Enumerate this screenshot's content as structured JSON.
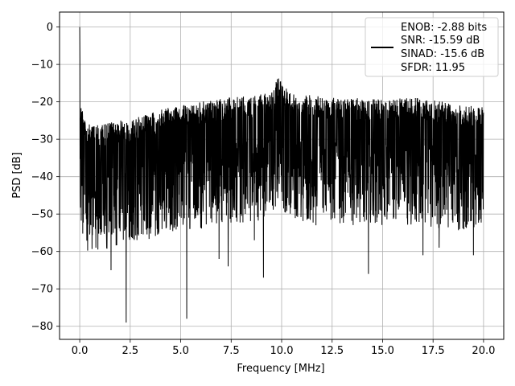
{
  "chart_data": {
    "type": "line",
    "title": "",
    "xlabel": "Frequency [MHz]",
    "ylabel": "PSD [dB]",
    "xlim": [
      -1.0,
      21.0
    ],
    "ylim": [
      -83.5,
      4.0
    ],
    "grid": true,
    "x_ticks": [
      0.0,
      2.5,
      5.0,
      7.5,
      10.0,
      12.5,
      15.0,
      17.5,
      20.0
    ],
    "x_tick_labels": [
      "0.0",
      "2.5",
      "5.0",
      "7.5",
      "10.0",
      "12.5",
      "15.0",
      "17.5",
      "20.0"
    ],
    "y_ticks": [
      0,
      -10,
      -20,
      -30,
      -40,
      -50,
      -60,
      -70,
      -80
    ],
    "y_tick_labels": [
      "0",
      "−10",
      "−20",
      "−30",
      "−40",
      "−50",
      "−60",
      "−70",
      "−80"
    ],
    "legend": {
      "placement": "top-right",
      "entries": [
        "ENOB: -2.88 bits",
        "SNR: -15.59 dB",
        "SINAD: -15.6 dB",
        "SFDR: 11.95"
      ]
    },
    "series_color": "#000000",
    "series": [
      {
        "x_start": 0.0,
        "x_end": 20.0,
        "envelope_upper": [
          [
            0.0,
            0.0
          ],
          [
            0.04,
            -20
          ],
          [
            0.4,
            -26
          ],
          [
            1.0,
            -26
          ],
          [
            2.0,
            -25
          ],
          [
            3.0,
            -24
          ],
          [
            4.0,
            -22
          ],
          [
            5.0,
            -21
          ],
          [
            6.0,
            -20
          ],
          [
            7.0,
            -19
          ],
          [
            8.0,
            -18.5
          ],
          [
            9.0,
            -18
          ],
          [
            9.5,
            -17
          ],
          [
            9.8,
            -13
          ],
          [
            10.0,
            -14
          ],
          [
            10.3,
            -17
          ],
          [
            11.0,
            -18
          ],
          [
            12.0,
            -18.5
          ],
          [
            13.0,
            -19
          ],
          [
            14.0,
            -19
          ],
          [
            15.0,
            -19
          ],
          [
            16.0,
            -19
          ],
          [
            17.0,
            -19
          ],
          [
            18.0,
            -20
          ],
          [
            19.0,
            -21
          ],
          [
            20.0,
            -21
          ]
        ],
        "notches": [
          [
            0.5,
            -55
          ],
          [
            0.8,
            -59
          ],
          [
            1.55,
            -65
          ],
          [
            2.3,
            -79
          ],
          [
            3.5,
            -49
          ],
          [
            4.7,
            -53
          ],
          [
            5.3,
            -78
          ],
          [
            6.9,
            -62
          ],
          [
            7.35,
            -64
          ],
          [
            8.65,
            -57
          ],
          [
            9.1,
            -67
          ],
          [
            11.7,
            -53
          ],
          [
            14.3,
            -66
          ],
          [
            17.0,
            -61
          ],
          [
            17.8,
            -59
          ],
          [
            19.5,
            -61
          ]
        ]
      }
    ]
  }
}
